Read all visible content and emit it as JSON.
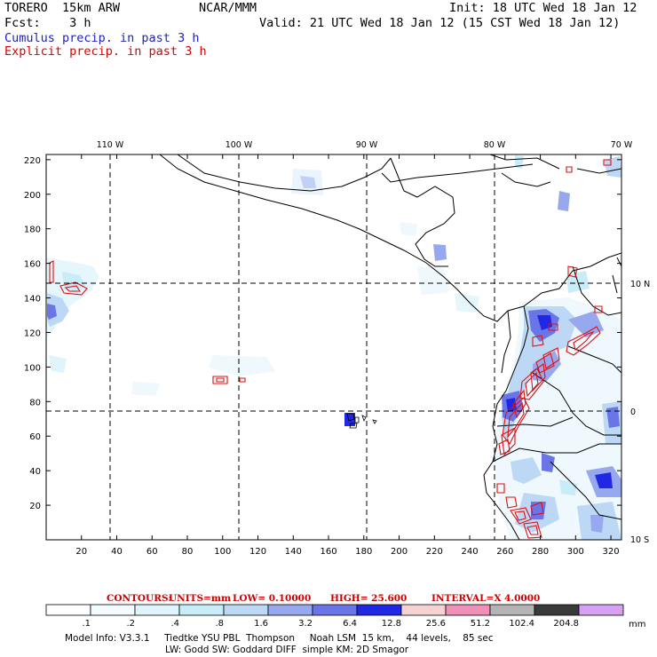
{
  "header": {
    "model": "TORERO  15km ARW",
    "center": "NCAR/MMM",
    "init": "Init: 18 UTC Wed 18 Jan 12",
    "fcst": "Fcst:    3 h",
    "valid": "Valid: 21 UTC Wed 18 Jan 12 (15 CST Wed 18 Jan 12)",
    "field1": "Cumulus precip. in past 3 h",
    "field2": "Explicit precip. in past 3 h",
    "field1_color": "#2222bb",
    "field2_color": "#dd0000"
  },
  "map": {
    "lon_labels": [
      "110 W",
      "100 W",
      "90 W",
      "80 W",
      "70 W"
    ],
    "lat_labels": [
      "10 N",
      "0",
      "10 S"
    ],
    "x_ticks": [
      "20",
      "40",
      "60",
      "80",
      "100",
      "120",
      "140",
      "160",
      "180",
      "200",
      "220",
      "240",
      "260",
      "280",
      "300",
      "320"
    ],
    "y_ticks": [
      "20",
      "40",
      "60",
      "80",
      "100",
      "120",
      "140",
      "160",
      "180",
      "200",
      "220"
    ]
  },
  "contour_info": {
    "label": "CONTOURS:",
    "units": "UNITS=mm",
    "low": "LOW= 0.10000",
    "high": "HIGH=  25.600",
    "interval": "INTERVAL=X  4.0000"
  },
  "legend": {
    "colors": [
      "#ffffff",
      "#f4fbfe",
      "#e0f4fb",
      "#c8ecf8",
      "#bcd8f5",
      "#98a8ee",
      "#6a76e8",
      "#2028e6",
      "#f6d2d2",
      "#f090b8",
      "#b4b4b4",
      "#3a3a3a",
      "#d8a0f2"
    ],
    "labels": [
      ".1",
      ".2",
      ".4",
      ".8",
      "1.6",
      "3.2",
      "6.4",
      "12.8",
      "25.6",
      "51.2",
      "102.4",
      "204.8"
    ],
    "units": "mm"
  },
  "model_info": {
    "line1": "Model Info: V3.3.1     Tiedtke YSU PBL  Thompson     Noah LSM  15 km,    44 levels,    85 sec",
    "line2": "LW: Godd SW: Goddard DIFF  simple KM: 2D Smagor"
  }
}
